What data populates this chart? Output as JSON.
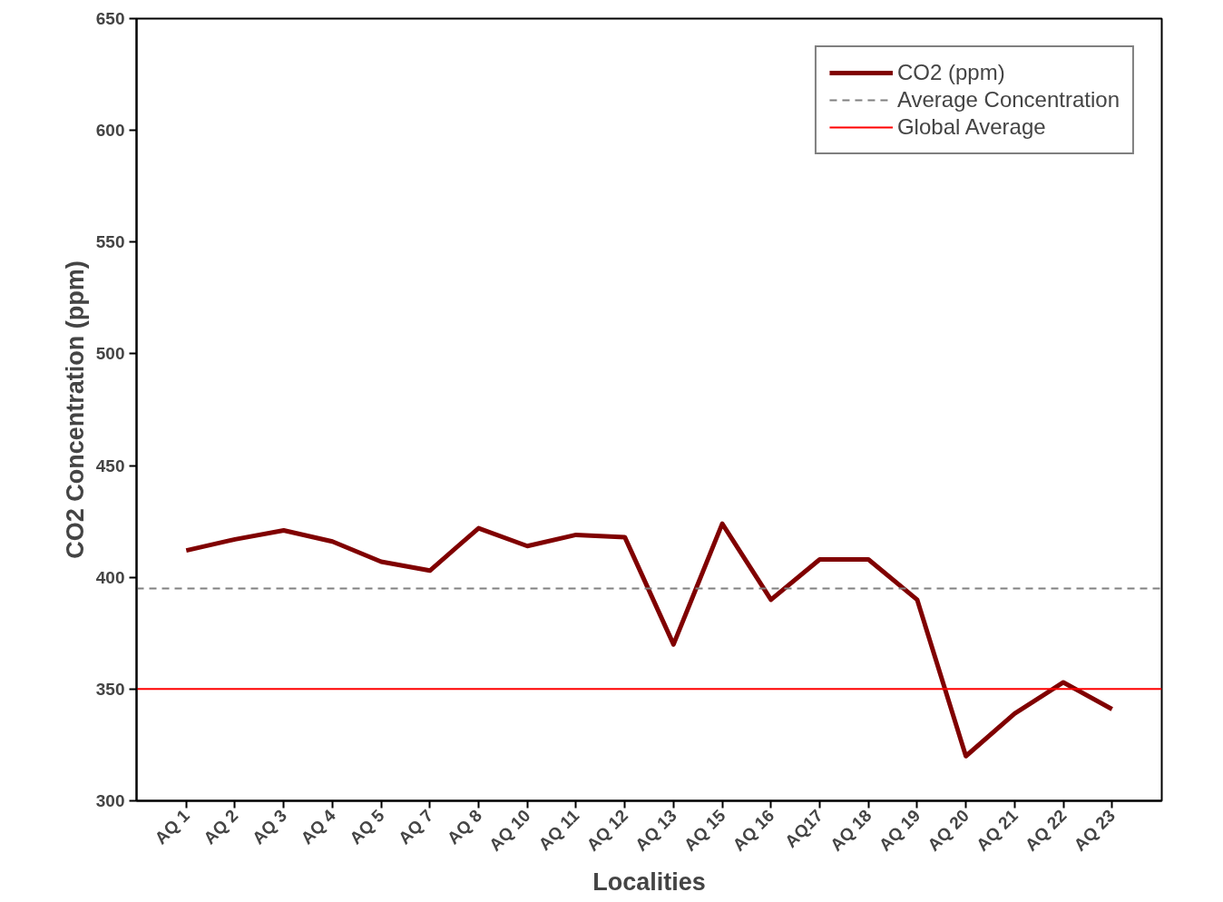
{
  "chart_data": {
    "type": "line",
    "xlabel": "Localities",
    "ylabel": "CO2 Concentration (ppm)",
    "categories": [
      "AQ 1",
      "AQ 2",
      "AQ 3",
      "AQ 4",
      "AQ 5",
      "AQ 7",
      "AQ 8",
      "AQ 10",
      "AQ 11",
      "AQ 12",
      "AQ 13",
      "AQ 15",
      "AQ 16",
      "AQ17",
      "AQ 18",
      "AQ 19",
      "AQ 20",
      "AQ 21",
      "AQ 22",
      "AQ 23"
    ],
    "series": [
      {
        "name": "CO2 (ppm)",
        "color": "#800000",
        "values": [
          412,
          417,
          421,
          416,
          407,
          403,
          422,
          414,
          419,
          418,
          370,
          424,
          390,
          408,
          408,
          390,
          320,
          339,
          353,
          341
        ]
      }
    ],
    "ref_lines": [
      {
        "axis": "y",
        "value": 395,
        "label": "Average Concentration",
        "color": "#808080",
        "line_style": "dashed"
      },
      {
        "axis": "y",
        "value": 350,
        "label": "Global Average",
        "color": "#ff0000",
        "line_style": "solid"
      }
    ],
    "ylim": [
      300,
      650
    ],
    "yticks": [
      300,
      350,
      400,
      450,
      500,
      550,
      600,
      650
    ],
    "grid": false,
    "legend": "top right",
    "marker": "none",
    "line_style": "solid"
  }
}
